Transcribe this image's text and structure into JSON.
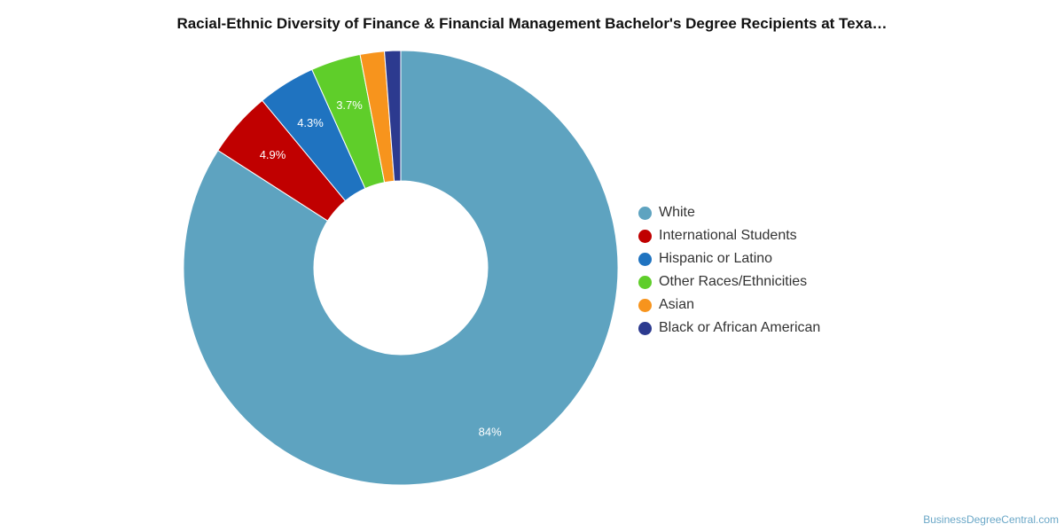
{
  "chart_data": {
    "type": "pie",
    "title": "Racial-Ethnic Diversity of Finance & Financial Management Bachelor's Degree Recipients at Texa…",
    "categories": [
      "White",
      "International Students",
      "Hispanic or Latino",
      "Other Races/Ethnicities",
      "Asian",
      "Black or African American"
    ],
    "values": [
      84,
      4.9,
      4.3,
      3.7,
      1.8,
      1.2
    ],
    "data_labels": [
      "84%",
      "4.9%",
      "4.3%",
      "3.7%",
      "",
      ""
    ],
    "colors": [
      "#5ea3c0",
      "#c00000",
      "#1f73c0",
      "#5fce2a",
      "#f7941d",
      "#2c3a8f"
    ],
    "legend_position": "right"
  },
  "credit": "BusinessDegreeCentral.com"
}
